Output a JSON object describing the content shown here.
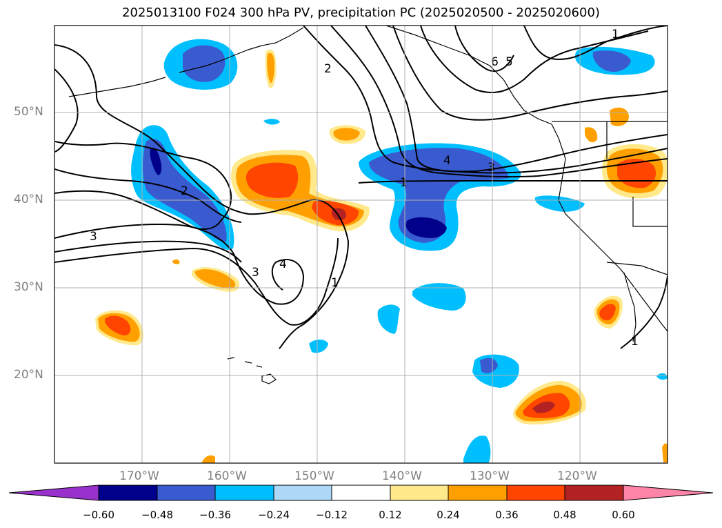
{
  "title": "2025013100 F024 300 hPa PV, precipitation PC (2025020500 - 2025020600)",
  "map": {
    "lat_labels": [
      "50°N",
      "40°N",
      "30°N",
      "20°N"
    ],
    "lon_labels": [
      "170°W",
      "160°W",
      "150°W",
      "140°W",
      "130°W",
      "120°W"
    ],
    "contour_labels": [
      "1",
      "1",
      "1",
      "1",
      "2",
      "2",
      "3",
      "3",
      "3",
      "4",
      "4",
      "5",
      "6"
    ]
  },
  "colorbar": {
    "tick_labels": [
      "−0.60",
      "−0.48",
      "−0.36",
      "−0.24",
      "−0.12",
      "0.12",
      "0.24",
      "0.36",
      "0.48",
      "0.60"
    ],
    "colors": [
      "#9932cc",
      "#00008b",
      "#3a5bcf",
      "#00bfff",
      "#add8f7",
      "#ffffff",
      "#ffe98a",
      "#ffa000",
      "#ff4500",
      "#b22222",
      "#ff85a8"
    ]
  }
}
